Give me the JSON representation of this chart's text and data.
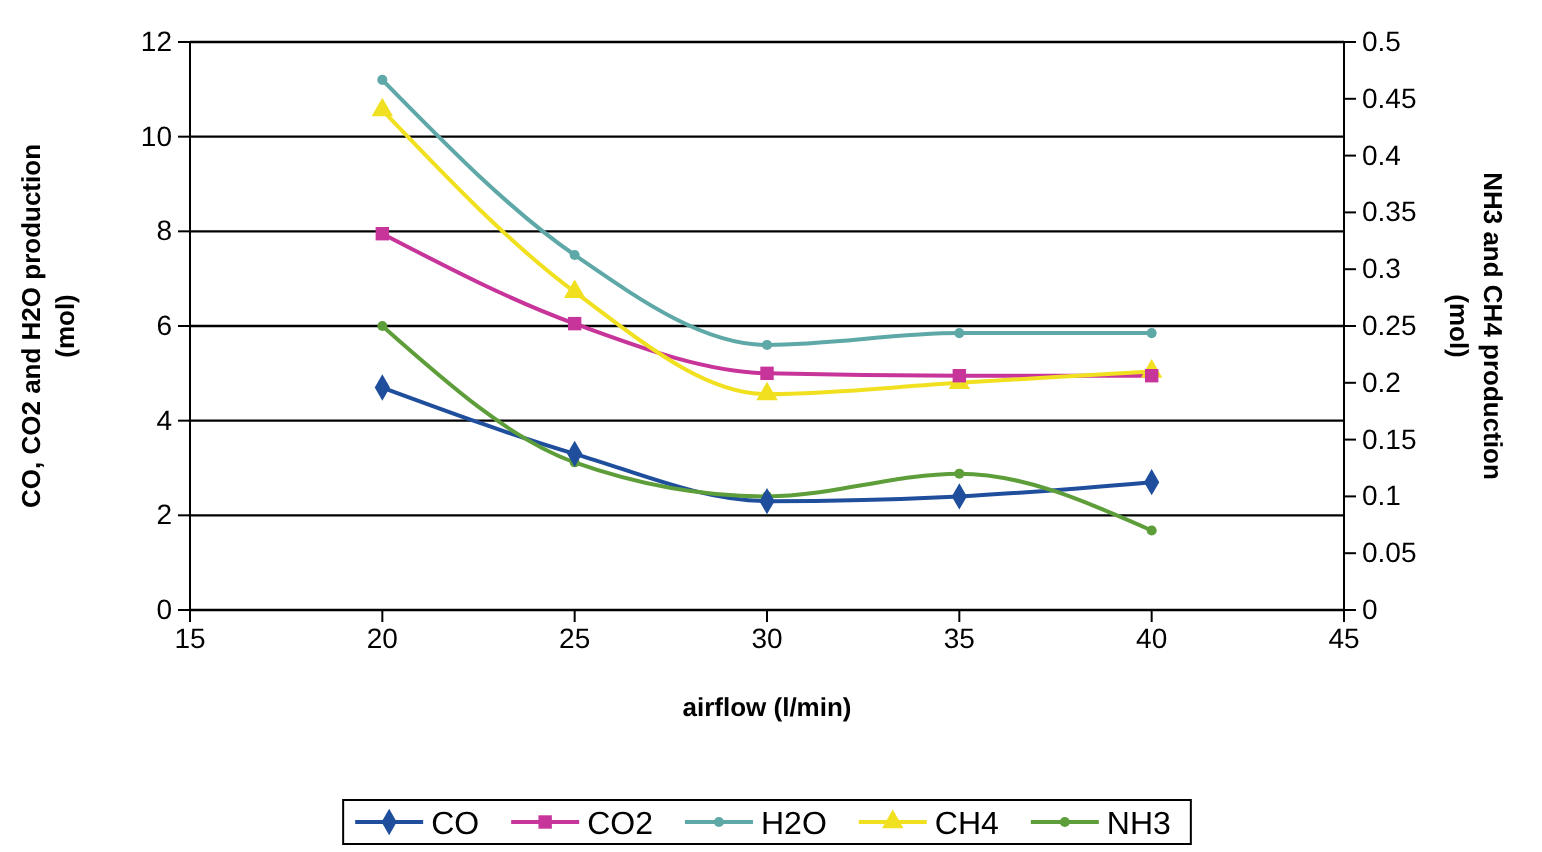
{
  "chart_data": {
    "type": "line",
    "xlabel": "airflow (l/min)",
    "ylabel": "CO, CO2 and H2O production (mol)",
    "y2label": "NH3 and CH4 production (mol)",
    "x": [
      20,
      25,
      30,
      35,
      40
    ],
    "xlim": [
      15,
      45
    ],
    "xticks": [
      15,
      20,
      25,
      30,
      35,
      40,
      45
    ],
    "ylim": [
      0,
      12
    ],
    "yticks": [
      0,
      2,
      4,
      6,
      8,
      10,
      12
    ],
    "y2lim": [
      0,
      0.5
    ],
    "y2ticks": [
      0,
      0.05,
      0.1,
      0.15,
      0.2,
      0.25,
      0.3,
      0.35,
      0.4,
      0.45,
      0.5
    ],
    "grid": "y",
    "legend": "bottom",
    "line_style": "solid",
    "series": [
      {
        "name": "CO",
        "color": "#1f4e9c",
        "marker": "diamond",
        "values": [
          4.7,
          3.3,
          2.3,
          2.4,
          2.7
        ]
      },
      {
        "name": "CO2",
        "color": "#c8359a",
        "marker": "square",
        "values": [
          7.95,
          6.05,
          5.0,
          4.95,
          4.95
        ]
      },
      {
        "name": "H2O",
        "color": "#5fa8a8",
        "marker": "circle",
        "values": [
          11.2,
          7.5,
          5.6,
          5.85,
          5.85
        ]
      },
      {
        "name": "CH4",
        "color": "#f0e020",
        "marker": "triangle",
        "axis": "y2",
        "values": [
          0.44,
          0.28,
          0.19,
          0.2,
          0.21
        ]
      },
      {
        "name": "NH3",
        "color": "#5e9e3a",
        "marker": "circle",
        "axis": "y2",
        "values": [
          0.25,
          0.13,
          0.1,
          0.12,
          0.07
        ]
      }
    ]
  }
}
